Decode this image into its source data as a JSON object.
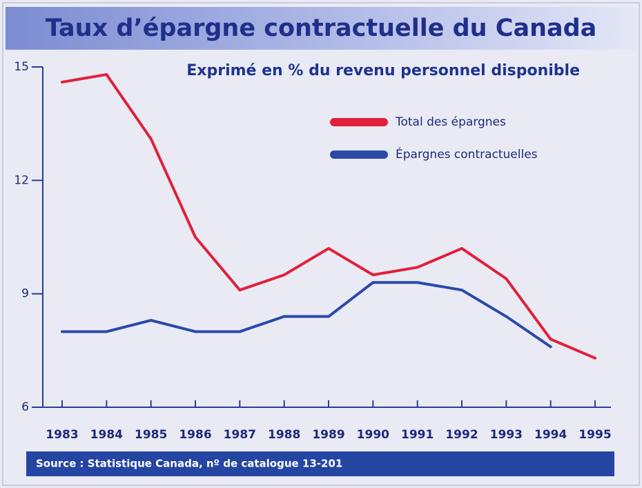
{
  "chart_data": {
    "type": "line",
    "title": "Taux d’épargne contractuelle du Canada",
    "subtitle": "Exprimé en % du revenu personnel disponible",
    "source": "Source : Statistique Canada, nº de catalogue 13-201",
    "categories": [
      "1983",
      "1984",
      "1985",
      "1986",
      "1987",
      "1988",
      "1989",
      "1990",
      "1991",
      "1992",
      "1993",
      "1994",
      "1995"
    ],
    "series": [
      {
        "name": "Total des épargnes",
        "color": "#e0203c",
        "values": [
          14.6,
          14.8,
          13.1,
          10.5,
          9.1,
          9.5,
          10.2,
          9.5,
          9.7,
          10.2,
          9.4,
          7.8,
          7.3
        ]
      },
      {
        "name": "Épargnes contractuelles",
        "color": "#2a4aa8",
        "values": [
          8.0,
          8.0,
          8.3,
          8.0,
          8.0,
          8.4,
          8.4,
          9.3,
          9.3,
          9.1,
          8.4,
          7.6,
          null
        ]
      }
    ],
    "ylim": [
      6,
      15
    ],
    "yticks": [
      6,
      9,
      12,
      15
    ]
  }
}
